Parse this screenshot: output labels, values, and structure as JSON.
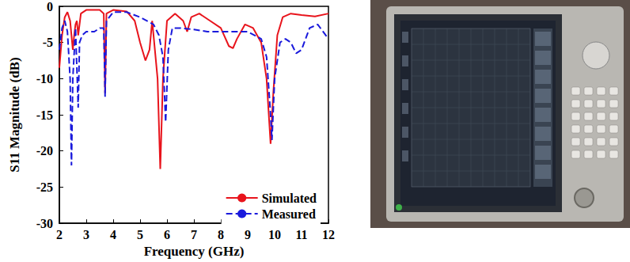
{
  "chart_data": {
    "type": "line",
    "xlabel": "Frequency (GHz)",
    "ylabel": "S11 Magnitude (dB)",
    "xlim": [
      2,
      12
    ],
    "xticks": [
      2,
      3,
      4,
      5,
      6,
      7,
      8,
      9,
      10,
      11,
      12
    ],
    "ylim": [
      -30,
      0
    ],
    "yticks": [
      -30,
      -25,
      -20,
      -15,
      -10,
      -5,
      0
    ],
    "grid": false,
    "legend": "lower right",
    "series": [
      {
        "name": "Simulated",
        "color": "#e8141c",
        "line_style": "solid",
        "x": [
          2.0,
          2.1,
          2.2,
          2.3,
          2.4,
          2.5,
          2.55,
          2.6,
          2.65,
          2.7,
          2.75,
          2.8,
          3.0,
          3.5,
          3.65,
          3.7,
          3.75,
          4.0,
          4.5,
          4.8,
          5.0,
          5.2,
          5.35,
          5.45,
          5.55,
          5.65,
          5.75,
          5.85,
          6.0,
          6.3,
          6.6,
          6.75,
          6.9,
          7.2,
          7.6,
          8.0,
          8.3,
          8.45,
          8.6,
          8.9,
          9.2,
          9.5,
          9.7,
          9.85,
          9.95,
          10.1,
          10.3,
          10.6,
          11.0,
          11.5,
          12.0
        ],
        "values": [
          -8.5,
          -4,
          -1.5,
          -0.8,
          -2,
          -6,
          -4,
          -2.5,
          -2,
          -4,
          -2.5,
          -1,
          -0.5,
          -0.5,
          -1,
          -12,
          -1,
          -0.5,
          -0.7,
          -2,
          -5,
          -7.5,
          -6,
          -2,
          -6,
          -10,
          -22.5,
          -10,
          -2,
          -1,
          -2,
          -3.5,
          -1.5,
          -1,
          -2,
          -3,
          -5.5,
          -5.8,
          -4.5,
          -2.5,
          -3,
          -5,
          -10,
          -19,
          -12,
          -4,
          -1.5,
          -1,
          -1.2,
          -1.4,
          -1
        ]
      },
      {
        "name": "Measured",
        "color": "#1a1adc",
        "line_style": "dashed",
        "x": [
          2.0,
          2.1,
          2.2,
          2.3,
          2.4,
          2.45,
          2.5,
          2.6,
          2.7,
          2.75,
          2.85,
          3.0,
          3.3,
          3.5,
          3.65,
          3.7,
          3.75,
          4.0,
          4.5,
          5.0,
          5.5,
          5.7,
          5.85,
          5.95,
          6.05,
          6.2,
          6.5,
          7.0,
          7.5,
          8.0,
          8.5,
          9.0,
          9.5,
          9.7,
          9.85,
          9.9,
          10.0,
          10.2,
          10.4,
          10.6,
          10.8,
          11.0,
          11.3,
          11.6,
          12.0
        ],
        "values": [
          -6,
          -3,
          -2,
          -3.5,
          -10,
          -22,
          -10,
          -3,
          -14,
          -5,
          -4,
          -3.5,
          -3.5,
          -3,
          -3,
          -12.5,
          -2,
          -0.8,
          -0.8,
          -1.5,
          -2.5,
          -4,
          -7,
          -16,
          -6,
          -3,
          -3,
          -3.2,
          -3.5,
          -3.5,
          -3.5,
          -3.5,
          -4.5,
          -7,
          -15,
          -18.5,
          -10,
          -5,
          -4.5,
          -5,
          -6.5,
          -6,
          -3,
          -2.5,
          -4.5
        ]
      }
    ]
  }
}
